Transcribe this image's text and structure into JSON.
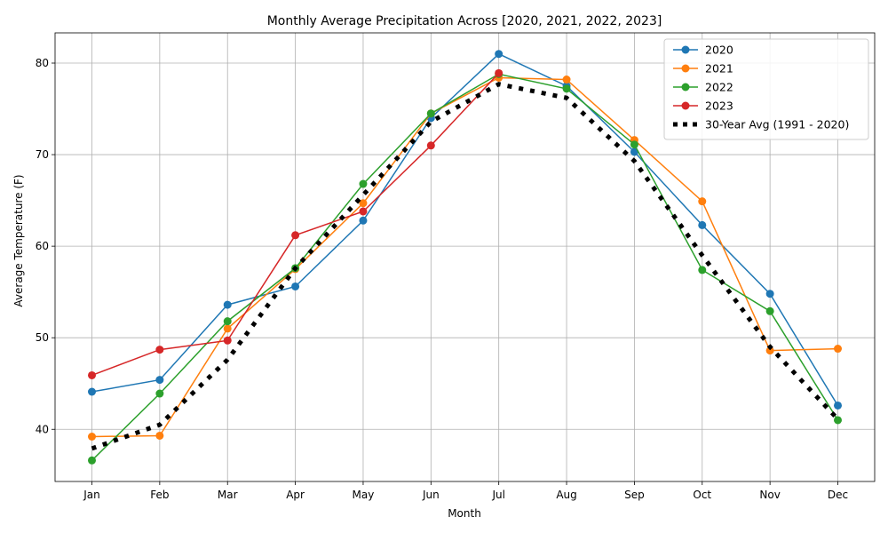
{
  "chart_data": {
    "type": "line",
    "title": "Monthly Average Precipitation Across [2020, 2021, 2022, 2023]",
    "xlabel": "Month",
    "ylabel": "Average Temperature (F)",
    "categories": [
      "Jan",
      "Feb",
      "Mar",
      "Apr",
      "May",
      "Jun",
      "Jul",
      "Aug",
      "Sep",
      "Oct",
      "Nov",
      "Dec"
    ],
    "ylim": [
      34.3,
      83.3
    ],
    "yticks": [
      40,
      50,
      60,
      70,
      80
    ],
    "grid": true,
    "legend_position": "top-right",
    "series": [
      {
        "name": "2020",
        "color": "#1f77b4",
        "style": "solid-marker",
        "values": [
          44.1,
          45.4,
          53.6,
          55.6,
          62.8,
          74.0,
          81.0,
          77.5,
          70.3,
          62.3,
          54.8,
          42.6
        ]
      },
      {
        "name": "2021",
        "color": "#ff7f0e",
        "style": "solid-marker",
        "values": [
          39.2,
          39.3,
          51.0,
          57.5,
          64.7,
          74.5,
          78.4,
          78.2,
          71.6,
          64.9,
          48.6,
          48.8
        ]
      },
      {
        "name": "2022",
        "color": "#2ca02c",
        "style": "solid-marker",
        "values": [
          36.6,
          43.9,
          51.8,
          57.6,
          66.8,
          74.5,
          78.8,
          77.2,
          71.1,
          57.4,
          52.9,
          41.0
        ]
      },
      {
        "name": "2023",
        "color": "#d62728",
        "style": "solid-marker",
        "values": [
          45.9,
          48.7,
          49.7,
          61.2,
          63.8,
          71.0,
          78.9,
          null,
          null,
          null,
          null,
          null
        ]
      },
      {
        "name": "30-Year Avg (1991 - 2020)",
        "color": "#000000",
        "style": "dotted",
        "values": [
          37.9,
          40.5,
          47.6,
          57.6,
          65.6,
          73.6,
          77.7,
          76.2,
          69.3,
          59.0,
          49.0,
          41.1
        ]
      }
    ]
  }
}
